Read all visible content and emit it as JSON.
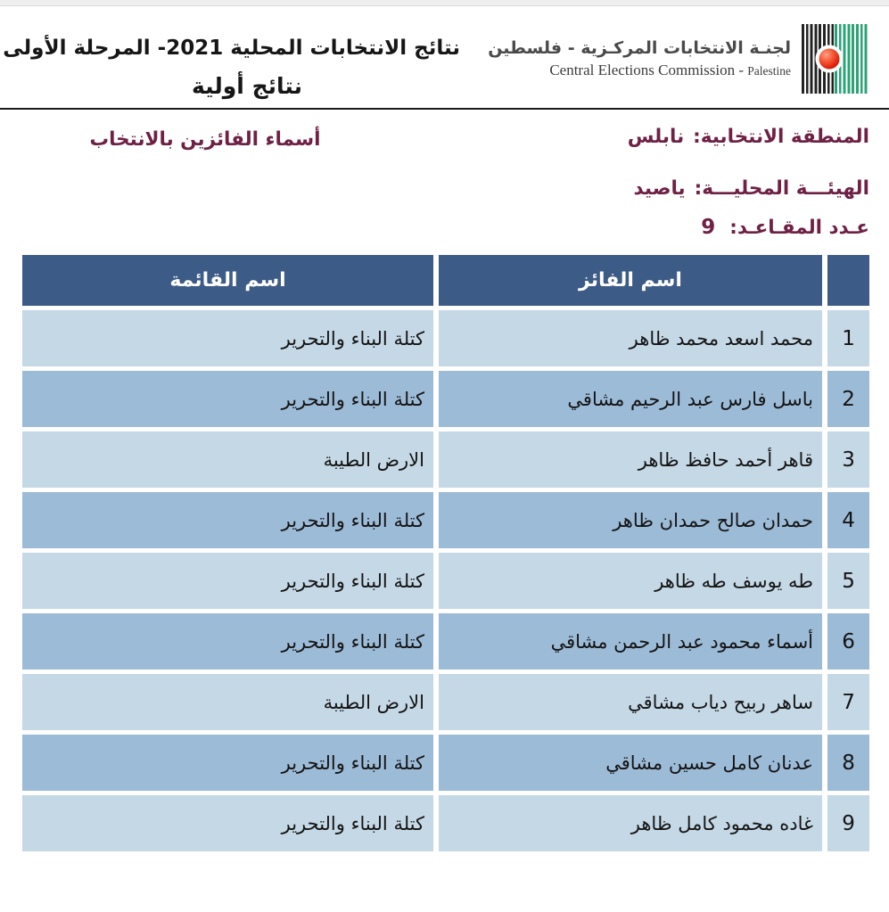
{
  "header": {
    "title_line1": "نتائج الانتخابات المحلية 2021- المرحلة الأولى",
    "title_line2": "نتائج أولية",
    "commission_name_ar": "لجنـة الانتخابات المركـزية - فلسطين",
    "commission_name_en_main": "Central Elections Commission - ",
    "commission_name_en_suffix": "Palestine"
  },
  "info": {
    "district_label": "المنطقة الانتخابية:",
    "district_value": "نابلس",
    "locality_label": "الهيئـــة المحليـــة:",
    "locality_value": "ياصيد",
    "seats_label": "عـدد المقـاعـد:",
    "seats_value": "9",
    "winners_heading": "أسماء الفائزين بالانتخاب"
  },
  "table": {
    "col_winner": "اسم الفائز",
    "col_list": "اسم القائمة",
    "rows": [
      {
        "num": "1",
        "winner": "محمد اسعد محمد ظاهر",
        "list": "كتلة البناء والتحرير"
      },
      {
        "num": "2",
        "winner": "باسل فارس عبد الرحيم مشاقي",
        "list": "كتلة البناء والتحرير"
      },
      {
        "num": "3",
        "winner": "قاهر أحمد حافظ ظاهر",
        "list": "الارض الطيبة"
      },
      {
        "num": "4",
        "winner": "حمدان صالح حمدان ظاهر",
        "list": "كتلة البناء والتحرير"
      },
      {
        "num": "5",
        "winner": "طه يوسف طه ظاهر",
        "list": "كتلة البناء والتحرير"
      },
      {
        "num": "6",
        "winner": "أسماء محمود عبد الرحمن مشاقي",
        "list": "كتلة البناء والتحرير"
      },
      {
        "num": "7",
        "winner": "ساهر ربيح دياب مشاقي",
        "list": "الارض الطيبة"
      },
      {
        "num": "8",
        "winner": "عدنان كامل حسين مشاقي",
        "list": "كتلة البناء والتحرير"
      },
      {
        "num": "9",
        "winner": "غاده محمود كامل ظاهر",
        "list": "كتلة البناء والتحرير"
      }
    ]
  },
  "colors": {
    "accent_maroon": "#6E2145",
    "table_header_bg": "#3C5B86",
    "row_light": "#C5D8E6",
    "row_dark": "#9CBBD7",
    "logo_green": "#2CA377",
    "logo_black": "#232323",
    "logo_red": "#DA1E08"
  }
}
